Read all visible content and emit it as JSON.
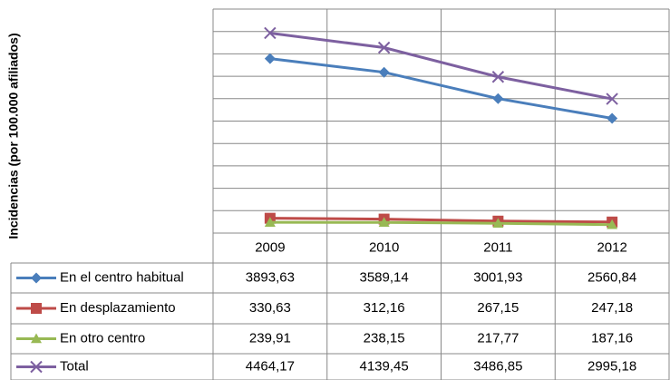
{
  "chart_data": {
    "type": "line",
    "y_label": "Incidencias (por 100.000 afiliados)",
    "categories": [
      "2009",
      "2010",
      "2011",
      "2012"
    ],
    "series": [
      {
        "name": "En el centro habitual",
        "color": "#4a7ebb",
        "marker": "diamond",
        "values": [
          3893.63,
          3589.14,
          3001.93,
          2560.84
        ],
        "value_labels": [
          "3893,63",
          "3589,14",
          "3001,93",
          "2560,84"
        ]
      },
      {
        "name": "En desplazamiento",
        "color": "#be4b48",
        "marker": "square",
        "values": [
          330.63,
          312.16,
          267.15,
          247.18
        ],
        "value_labels": [
          "330,63",
          "312,16",
          "267,15",
          "247,18"
        ]
      },
      {
        "name": "En otro centro",
        "color": "#98b954",
        "marker": "triangle",
        "values": [
          239.91,
          238.15,
          217.77,
          187.16
        ],
        "value_labels": [
          "239,91",
          "238,15",
          "217,77",
          "187,16"
        ]
      },
      {
        "name": "Total",
        "color": "#7d60a0",
        "marker": "x",
        "values": [
          4464.17,
          4139.45,
          3486.85,
          2995.18
        ],
        "value_labels": [
          "4464,17",
          "4139,45",
          "3486,85",
          "2995,18"
        ]
      }
    ],
    "ylim": [
      0,
      5000
    ],
    "yticks": [
      0,
      500,
      1000,
      1500,
      2000,
      2500,
      3000,
      3500,
      4000,
      4500,
      5000
    ],
    "grid": true
  }
}
